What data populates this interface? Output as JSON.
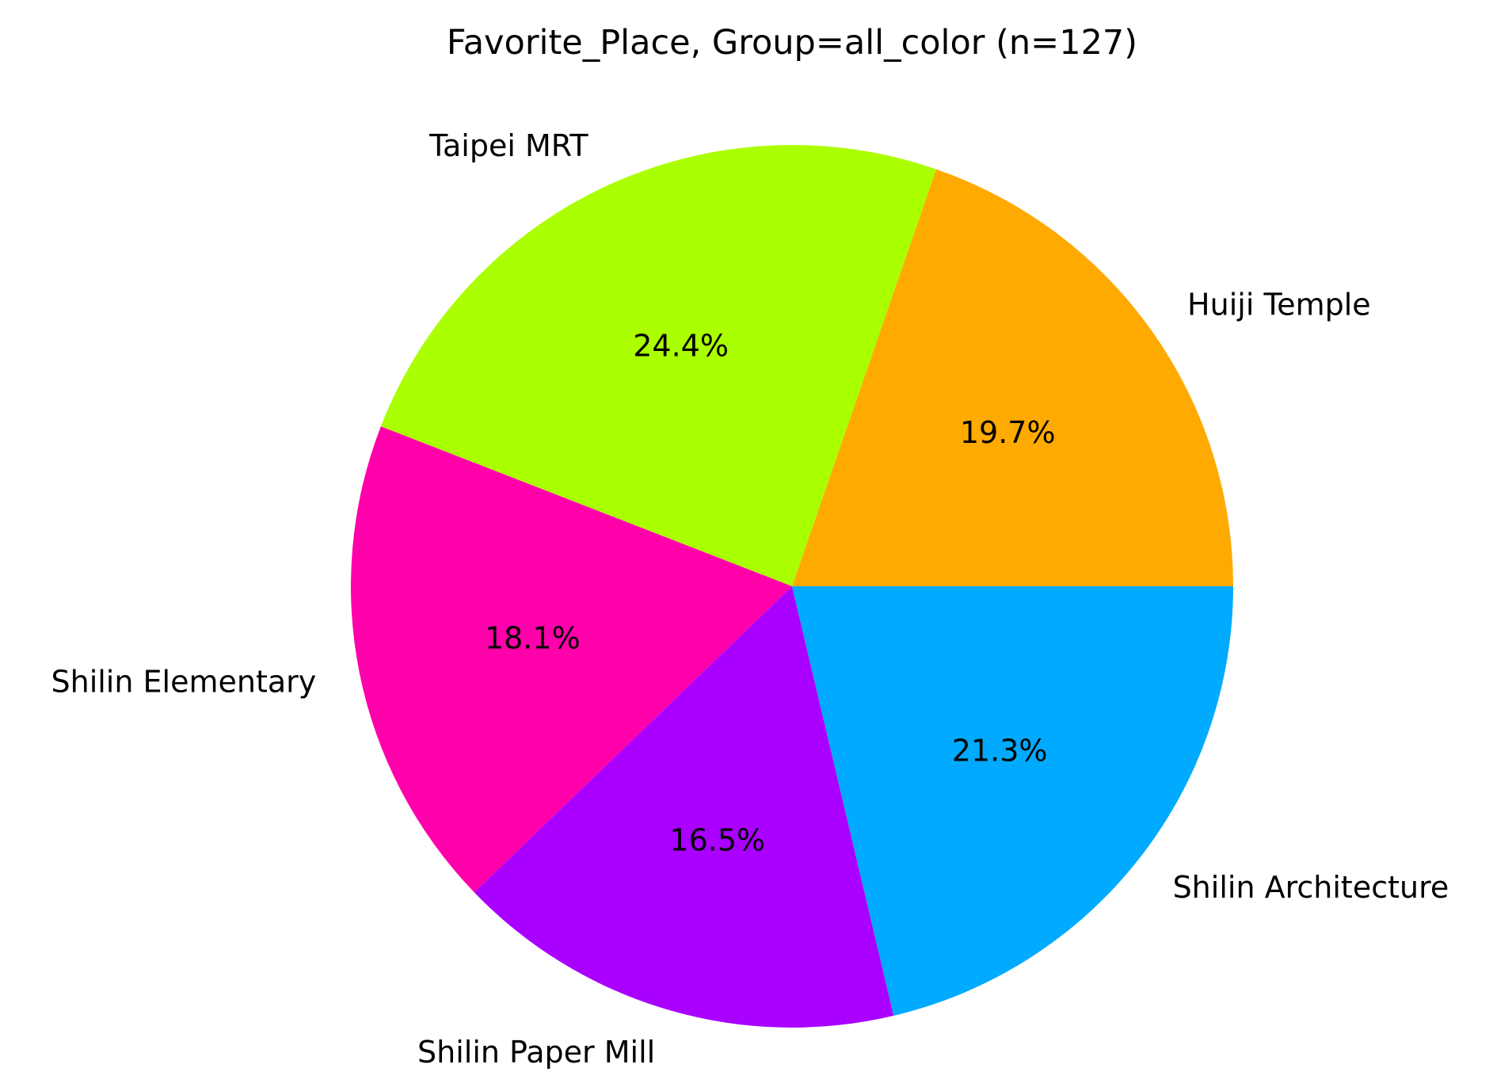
{
  "chart_data": {
    "type": "pie",
    "title": "Favorite_Place, Group=all_color (n=127)",
    "start_angle_deg": 0,
    "direction": "counterclockwise",
    "slices": [
      {
        "label": "Huiji Temple",
        "value": 19.7,
        "pct_label": "19.7%",
        "color": "#FFAA00"
      },
      {
        "label": "Taipei MRT",
        "value": 24.4,
        "pct_label": "24.4%",
        "color": "#AAFF00"
      },
      {
        "label": "Shilin Elementary",
        "value": 18.1,
        "pct_label": "18.1%",
        "color": "#FF00AA"
      },
      {
        "label": "Shilin Paper Mill",
        "value": 16.5,
        "pct_label": "16.5%",
        "color": "#AA00FF"
      },
      {
        "label": "Shilin Architecture",
        "value": 21.3,
        "pct_label": "21.3%",
        "color": "#00AAFF"
      }
    ]
  }
}
